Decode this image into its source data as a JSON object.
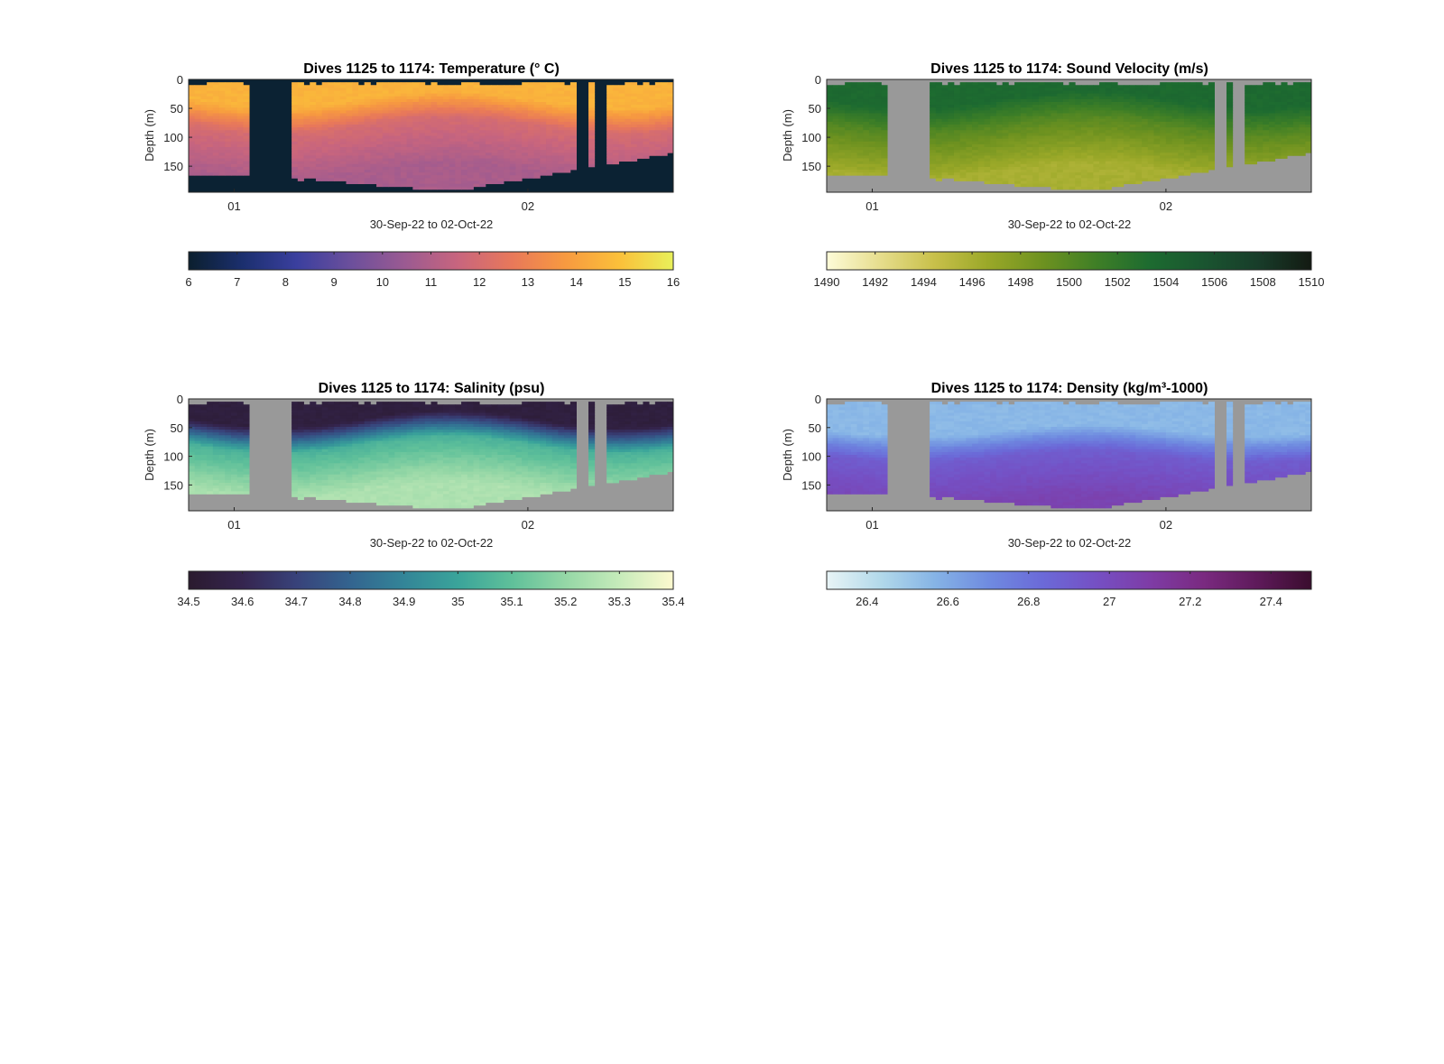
{
  "figure": {
    "background": "#ffffff",
    "no_data_color": "#999999"
  },
  "chart_data": [
    {
      "type": "heatmap",
      "title": "Dives 1125 to 1174: Temperature",
      "title_unit": "(° C)",
      "xlabel": "30-Sep-22 to 02-Oct-22",
      "ylabel": "Depth (m)",
      "x_ticks": [
        "01",
        "02"
      ],
      "y_ticks": [
        0,
        50,
        100,
        150
      ],
      "ylim": [
        0,
        195
      ],
      "masked_color": "#0b2233",
      "colorbar": {
        "min": 6,
        "max": 16,
        "ticks": [
          "6",
          "7",
          "8",
          "9",
          "10",
          "11",
          "12",
          "13",
          "14",
          "15",
          "16"
        ],
        "colormap": [
          "#0b1f2e",
          "#1b2f6e",
          "#3a3f9e",
          "#6b4f9c",
          "#9a5a92",
          "#c8657e",
          "#e8785a",
          "#f79a40",
          "#fbc03a",
          "#e8f05a"
        ]
      },
      "profile": {
        "surface": 14.5,
        "mid": 12.0,
        "deep": 10.8
      }
    },
    {
      "type": "heatmap",
      "title": "Dives 1125 to 1174: Sound Velocity (m/s)",
      "xlabel": "30-Sep-22 to 02-Oct-22",
      "ylabel": "Depth (m)",
      "x_ticks": [
        "01",
        "02"
      ],
      "y_ticks": [
        0,
        50,
        100,
        150
      ],
      "ylim": [
        0,
        195
      ],
      "masked_color": "#999999",
      "colorbar": {
        "min": 1490,
        "max": 1510,
        "ticks": [
          "1490",
          "1492",
          "1494",
          "1496",
          "1498",
          "1500",
          "1502",
          "1504",
          "1506",
          "1508",
          "1510"
        ],
        "colormap": [
          "#fdfbd8",
          "#e6dd8c",
          "#c8c04a",
          "#9aa828",
          "#6e9220",
          "#3f7f26",
          "#1d6b30",
          "#1a5530",
          "#183d2a",
          "#131a12"
        ]
      },
      "profile": {
        "surface": 1503.5,
        "mid": 1500.0,
        "deep": 1496.0
      }
    },
    {
      "type": "heatmap",
      "title": "Dives 1125 to 1174: Salinity (psu)",
      "xlabel": "30-Sep-22 to 02-Oct-22",
      "ylabel": "Depth (m)",
      "x_ticks": [
        "01",
        "02"
      ],
      "y_ticks": [
        0,
        50,
        100,
        150
      ],
      "ylim": [
        0,
        195
      ],
      "masked_color": "#999999",
      "colorbar": {
        "min": 34.5,
        "max": 35.4,
        "ticks": [
          "34.5",
          "34.6",
          "34.7",
          "34.8",
          "34.9",
          "35",
          "35.1",
          "35.2",
          "35.3",
          "35.4"
        ],
        "colormap": [
          "#2a1a2e",
          "#35254f",
          "#38427a",
          "#33648f",
          "#338598",
          "#3aa49a",
          "#5fc09a",
          "#95d7a6",
          "#c6ebba",
          "#fdf9cf"
        ]
      },
      "profile": {
        "surface": 34.55,
        "mid": 35.05,
        "deep": 35.25
      }
    },
    {
      "type": "heatmap",
      "title": "Dives 1125 to 1174: Density",
      "title_unit": "(kg/m³-1000)",
      "xlabel": "30-Sep-22 to 02-Oct-22",
      "ylabel": "Depth (m)",
      "x_ticks": [
        "01",
        "02"
      ],
      "y_ticks": [
        0,
        50,
        100,
        150
      ],
      "ylim": [
        0,
        195
      ],
      "masked_color": "#999999",
      "colorbar": {
        "min": 26.3,
        "max": 27.5,
        "ticks": [
          "26.4",
          "26.6",
          "26.8",
          "27",
          "27.2",
          "27.4"
        ],
        "colormap": [
          "#e8f4f6",
          "#b2d9ea",
          "#86b4e6",
          "#6f8be0",
          "#6b6ad8",
          "#7550c4",
          "#7e3ca6",
          "#7a2a80",
          "#5e1a5a",
          "#3a0d2e"
        ]
      },
      "profile": {
        "surface": 26.55,
        "mid": 26.9,
        "deep": 27.05
      }
    }
  ]
}
